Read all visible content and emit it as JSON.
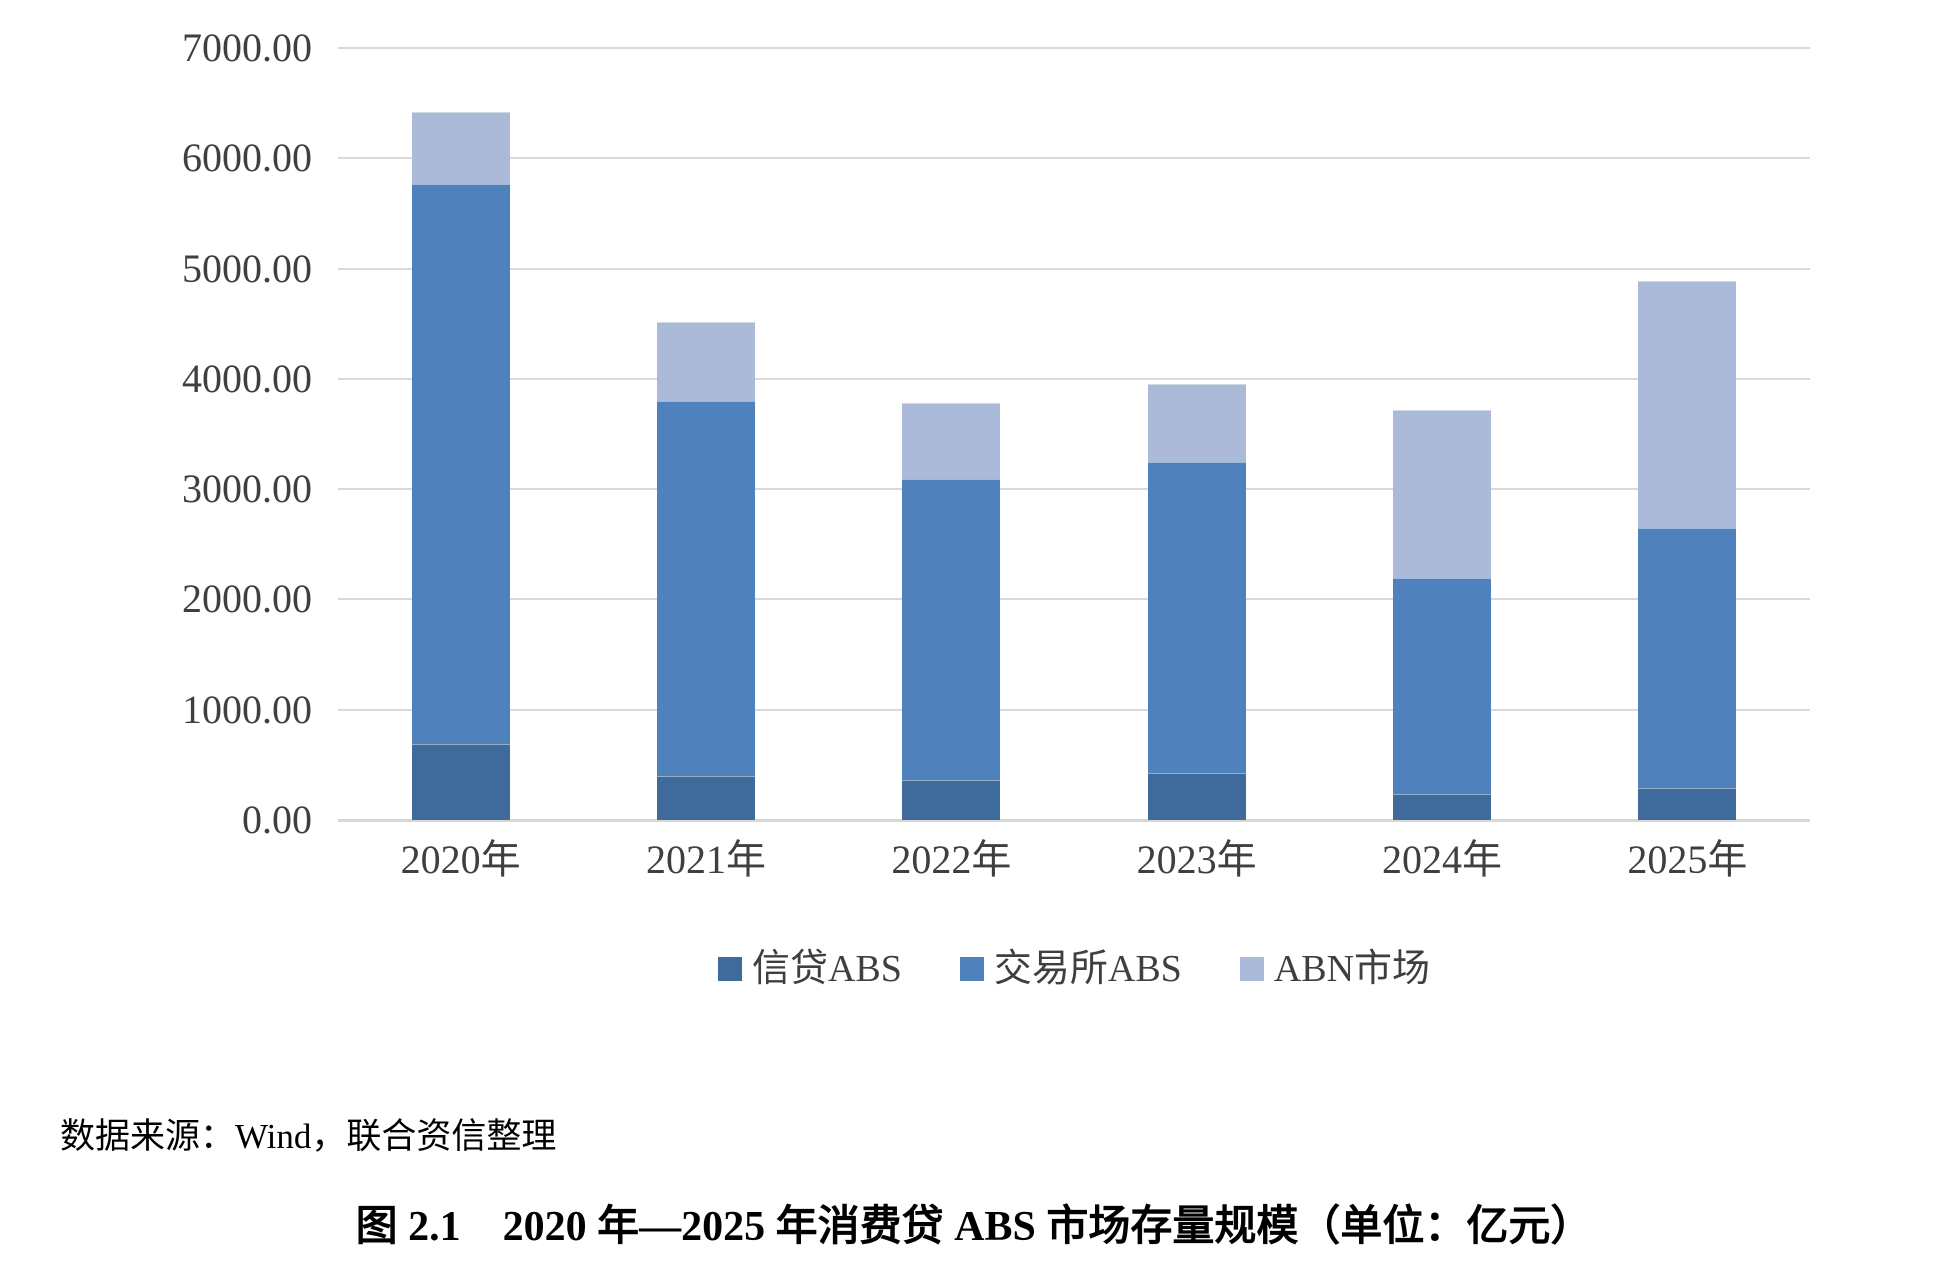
{
  "chart_data": {
    "type": "bar",
    "stacked": true,
    "title": "",
    "xlabel": "",
    "ylabel": "",
    "unit": "亿元",
    "categories": [
      "2020年",
      "2021年",
      "2022年",
      "2023年",
      "2024年",
      "2025年"
    ],
    "series": [
      {
        "name": "信贷ABS",
        "color": "#3f6b9b",
        "values": [
          690,
          400,
          360,
          430,
          240,
          290
        ]
      },
      {
        "name": "交易所ABS",
        "color": "#4f81bd",
        "values": [
          5075,
          3395,
          2730,
          2815,
          1955,
          2360
        ]
      },
      {
        "name": "ABN市场",
        "color": "#abbad8",
        "values": [
          655,
          720,
          690,
          705,
          1525,
          2240
        ]
      }
    ],
    "totals": [
      6420,
      4515,
      3780,
      3950,
      3720,
      4890
    ],
    "ylim": [
      0,
      7000
    ],
    "ytick_step": 1000,
    "ytick_labels": [
      "7000.00",
      "6000.00",
      "5000.00",
      "4000.00",
      "3000.00",
      "2000.00",
      "1000.00",
      "0.00"
    ],
    "grid": true,
    "gridline_color": "#d9d9d9",
    "legend_position": "bottom"
  },
  "source_note": "数据来源：Wind，联合资信整理",
  "caption": "图 2.1　2020 年—2025 年消费贷 ABS 市场存量规模（单位：亿元）"
}
